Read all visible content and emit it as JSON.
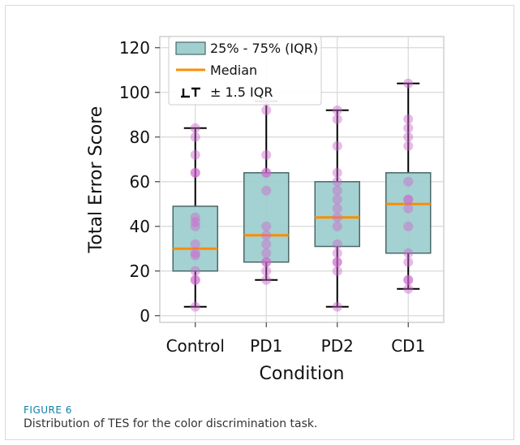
{
  "figure": {
    "label": "FIGURE 6",
    "caption": "Distribution of TES for the color discrimination task."
  },
  "colors": {
    "box_fill": "#9fcfcf",
    "box_edge": "#4a6868",
    "median": "#ff8c00",
    "points": "#cc66cc",
    "whisker": "#000000",
    "grid": "#d8d8d8"
  },
  "chart_data": {
    "type": "box",
    "xlabel": "Condition",
    "ylabel": "Total Error Score",
    "ylim": [
      -3,
      125
    ],
    "yticks": [
      0,
      20,
      40,
      60,
      80,
      100,
      120
    ],
    "grid": true,
    "legend_position": "top-left",
    "legend": {
      "iqr_label": "25% - 75% (IQR)",
      "median_label": "Median",
      "whisker_label": "± 1.5 IQR"
    },
    "categories": [
      "Control",
      "PD1",
      "PD2",
      "CD1"
    ],
    "boxes": [
      {
        "name": "Control",
        "q1": 20,
        "median": 30,
        "q3": 49,
        "whisker_low": 4,
        "whisker_high": 84,
        "points": [
          4,
          16,
          16,
          20,
          27,
          28,
          32,
          40,
          42,
          44,
          64,
          64,
          72,
          80,
          84
        ]
      },
      {
        "name": "PD1",
        "q1": 24,
        "median": 36,
        "q3": 64,
        "whisker_low": 16,
        "whisker_high": 96,
        "points": [
          16,
          20,
          24,
          24,
          28,
          32,
          36,
          40,
          56,
          64,
          64,
          72,
          92,
          96
        ]
      },
      {
        "name": "PD2",
        "q1": 31,
        "median": 44,
        "q3": 60,
        "whisker_low": 4,
        "whisker_high": 92,
        "points": [
          4,
          20,
          24,
          24,
          28,
          32,
          40,
          44,
          48,
          52,
          56,
          60,
          64,
          76,
          88,
          92
        ]
      },
      {
        "name": "CD1",
        "q1": 28,
        "median": 50,
        "q3": 64,
        "whisker_low": 12,
        "whisker_high": 104,
        "points": [
          12,
          16,
          16,
          24,
          28,
          40,
          48,
          52,
          52,
          60,
          76,
          80,
          84,
          88,
          104
        ]
      }
    ]
  }
}
